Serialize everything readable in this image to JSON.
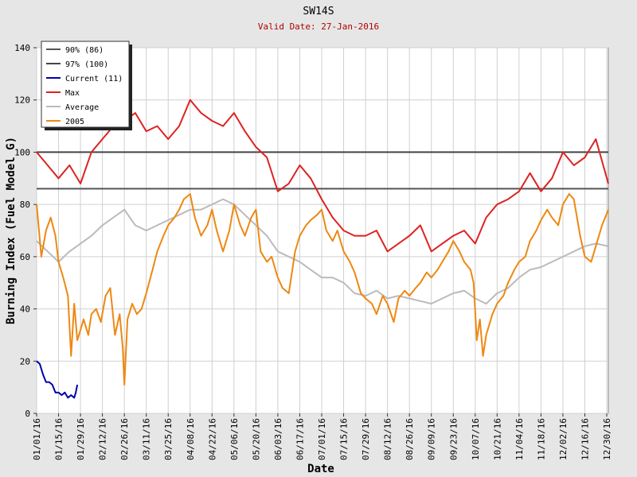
{
  "chart_data": {
    "type": "line",
    "title": "SW14S",
    "subtitle": "Valid Date: 27-Jan-2016",
    "xlabel": "Date",
    "ylabel": "Burning Index (Fuel Model G)",
    "ylim": [
      0,
      140
    ],
    "yticks": [
      0,
      20,
      40,
      60,
      80,
      100,
      120,
      140
    ],
    "xlim_day": [
      0,
      365
    ],
    "grid": true,
    "legend_position": "top-left",
    "xtick_labels": [
      "01/01/16",
      "01/15/16",
      "01/29/16",
      "02/12/16",
      "02/26/16",
      "03/11/16",
      "03/25/16",
      "04/08/16",
      "04/22/16",
      "05/06/16",
      "05/20/16",
      "06/03/16",
      "06/17/16",
      "07/01/16",
      "07/15/16",
      "07/29/16",
      "08/12/16",
      "08/26/16",
      "09/09/16",
      "09/23/16",
      "10/07/16",
      "10/21/16",
      "11/04/16",
      "11/18/16",
      "12/02/16",
      "12/16/16",
      "12/30/16"
    ],
    "xtick_days": [
      0,
      14,
      28,
      42,
      56,
      70,
      84,
      98,
      112,
      126,
      140,
      154,
      168,
      182,
      196,
      210,
      224,
      238,
      252,
      266,
      280,
      294,
      308,
      322,
      336,
      350,
      364
    ],
    "reference_lines": [
      {
        "name": "90% (86)",
        "value": 86,
        "color": "#555555"
      },
      {
        "name": "97% (100)",
        "value": 100,
        "color": "#444444"
      }
    ],
    "series": [
      {
        "name": "Current (11)",
        "color": "#0000aa",
        "days": [
          0,
          2,
          4,
          6,
          8,
          10,
          12,
          14,
          16,
          18,
          20,
          22,
          24,
          25,
          26
        ],
        "values": [
          20,
          19,
          15,
          12,
          12,
          11,
          8,
          8,
          7,
          8,
          6,
          7,
          6,
          8,
          11
        ]
      },
      {
        "name": "Max",
        "color": "#dd2222",
        "days": [
          0,
          7,
          14,
          21,
          28,
          35,
          42,
          49,
          56,
          63,
          70,
          77,
          84,
          91,
          98,
          105,
          112,
          119,
          126,
          133,
          140,
          147,
          154,
          161,
          168,
          175,
          182,
          189,
          196,
          203,
          210,
          217,
          224,
          231,
          238,
          245,
          252,
          259,
          266,
          273,
          280,
          287,
          294,
          301,
          308,
          315,
          322,
          329,
          336,
          343,
          350,
          357,
          365
        ],
        "values": [
          100,
          95,
          90,
          95,
          88,
          100,
          105,
          110,
          112,
          115,
          108,
          110,
          105,
          110,
          120,
          115,
          112,
          110,
          115,
          108,
          102,
          98,
          85,
          88,
          95,
          90,
          82,
          75,
          70,
          68,
          68,
          70,
          62,
          65,
          68,
          72,
          62,
          65,
          68,
          70,
          65,
          75,
          80,
          82,
          85,
          92,
          85,
          90,
          100,
          95,
          98,
          105,
          88
        ]
      },
      {
        "name": "Average",
        "color": "#bbbbbb",
        "days": [
          0,
          7,
          14,
          21,
          28,
          35,
          42,
          49,
          56,
          63,
          70,
          77,
          84,
          91,
          98,
          105,
          112,
          119,
          126,
          133,
          140,
          147,
          154,
          161,
          168,
          175,
          182,
          189,
          196,
          203,
          210,
          217,
          224,
          231,
          238,
          245,
          252,
          259,
          266,
          273,
          280,
          287,
          294,
          301,
          308,
          315,
          322,
          329,
          336,
          343,
          350,
          357,
          365
        ],
        "values": [
          66,
          62,
          58,
          62,
          65,
          68,
          72,
          75,
          78,
          72,
          70,
          72,
          74,
          76,
          78,
          78,
          80,
          82,
          80,
          76,
          72,
          68,
          62,
          60,
          58,
          55,
          52,
          52,
          50,
          46,
          45,
          47,
          44,
          45,
          44,
          43,
          42,
          44,
          46,
          47,
          44,
          42,
          46,
          48,
          52,
          55,
          56,
          58,
          60,
          62,
          64,
          65,
          64
        ]
      },
      {
        "name": "2005",
        "color": "#ee8811",
        "days": [
          0,
          3,
          6,
          9,
          12,
          14,
          17,
          20,
          22,
          24,
          26,
          28,
          30,
          33,
          35,
          38,
          41,
          44,
          47,
          50,
          53,
          55,
          56,
          58,
          61,
          64,
          67,
          70,
          74,
          77,
          81,
          84,
          88,
          91,
          94,
          98,
          101,
          105,
          109,
          112,
          115,
          119,
          123,
          126,
          130,
          133,
          137,
          140,
          143,
          147,
          150,
          154,
          157,
          161,
          165,
          168,
          172,
          175,
          179,
          182,
          185,
          189,
          192,
          196,
          200,
          203,
          207,
          210,
          214,
          217,
          221,
          224,
          228,
          231,
          235,
          238,
          242,
          245,
          249,
          252,
          256,
          259,
          263,
          266,
          270,
          273,
          277,
          279,
          281,
          283,
          285,
          287,
          289,
          291,
          294,
          298,
          301,
          305,
          308,
          312,
          315,
          319,
          322,
          326,
          329,
          333,
          336,
          340,
          343,
          347,
          350,
          354,
          357,
          361,
          365
        ],
        "values": [
          80,
          60,
          70,
          75,
          68,
          58,
          52,
          45,
          22,
          42,
          28,
          32,
          36,
          30,
          38,
          40,
          35,
          45,
          48,
          30,
          38,
          25,
          11,
          36,
          42,
          38,
          40,
          46,
          55,
          62,
          68,
          72,
          75,
          78,
          82,
          84,
          75,
          68,
          72,
          78,
          70,
          62,
          70,
          80,
          72,
          68,
          75,
          78,
          62,
          58,
          60,
          52,
          48,
          46,
          62,
          68,
          72,
          74,
          76,
          78,
          70,
          66,
          70,
          62,
          58,
          54,
          46,
          44,
          42,
          38,
          45,
          42,
          35,
          44,
          47,
          45,
          48,
          50,
          54,
          52,
          55,
          58,
          62,
          66,
          62,
          58,
          55,
          50,
          28,
          36,
          22,
          30,
          34,
          38,
          42,
          45,
          50,
          55,
          58,
          60,
          66,
          70,
          74,
          78,
          75,
          72,
          80,
          84,
          82,
          68,
          60,
          58,
          64,
          72,
          78
        ]
      }
    ]
  }
}
